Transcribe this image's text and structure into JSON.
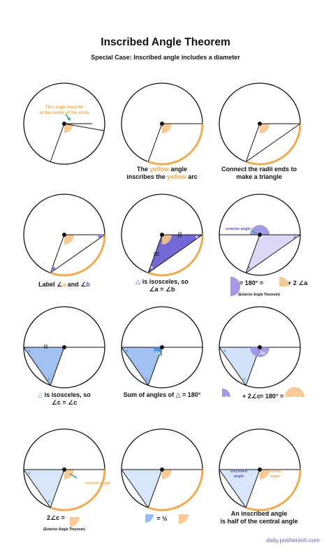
{
  "header": {
    "title": "Inscribed Angle Theorem",
    "subtitle": "Special Case: Inscribed angle includes a diameter"
  },
  "colors": {
    "orange": "#f5a94a",
    "orange_fill": "#f7c48a",
    "blue": "#4a8ee0",
    "blue_fill": "#8fb6ef",
    "purple": "#5a4fcf",
    "purple_fill": "#9a8fe6",
    "teal": "#1fa38a"
  },
  "icons": [
    "circle-diagram",
    "arrow-icon",
    "angle-wedge-icon"
  ],
  "panels": {
    "p1": {
      "note_line1": "This angle must be",
      "note_line2": "at the center of the circle"
    },
    "p2": {
      "cap1_a": "The ",
      "cap1_hl": "yellow",
      "cap1_b": " angle",
      "cap2_a": "inscribes the ",
      "cap2_hl": "yellow",
      "cap2_b": " arc"
    },
    "p3": {
      "cap1": "Connect the radii ends to",
      "cap2": "make a triangle"
    },
    "p4": {
      "cap_prefix": "Label ",
      "angle_sym": "∠",
      "a": "a",
      "and": " and ",
      "b": "b",
      "label_a": "a",
      "label_b": "b"
    },
    "p5": {
      "cap1_tri": "△",
      "cap1": " is isosceles, so",
      "cap2": "∠a = ∠b",
      "label_a": "a",
      "label_b": "b"
    },
    "p6": {
      "ext_label": "exterior angle",
      "label_2a": "2a",
      "label_a1": "a",
      "label_a2": "a",
      "eq": "= 180° =",
      "plus": "+ 2 ∠a",
      "note": "(Exterior Angle Theorem)"
    },
    "p7": {
      "cap1_tri": "△",
      "cap1": " is isosceles, so",
      "cap2": "∠c = ∠c",
      "label_c1": "c",
      "label_c2": "c"
    },
    "p8": {
      "cap": "Sum of angles of △ = 180°",
      "label_2a": "2a",
      "label_c1": "c",
      "label_c2": "c"
    },
    "p9": {
      "label_2a": "2a",
      "label_c1": "c",
      "label_c2": "c",
      "eq_2a": "2a",
      "plus": "+ 2∠c",
      "eq": "= 180° =",
      "eq_2a2": "2a"
    },
    "p10": {
      "ext_label": "exterior angle",
      "label_c1": "c",
      "label_c2": "c",
      "cap": "2∠c =",
      "note": "(Exterior Angle Theorem)"
    },
    "p11": {
      "eq": "= ½"
    },
    "p12": {
      "inscribed_label1": "inscribed",
      "inscribed_label2": "angle",
      "central_label1": "central",
      "central_label2": "angle",
      "cap1": "An inscribed angle",
      "cap2": "is half of the central angle"
    }
  },
  "footer": {
    "brand": "daily.poshenloh.com"
  }
}
